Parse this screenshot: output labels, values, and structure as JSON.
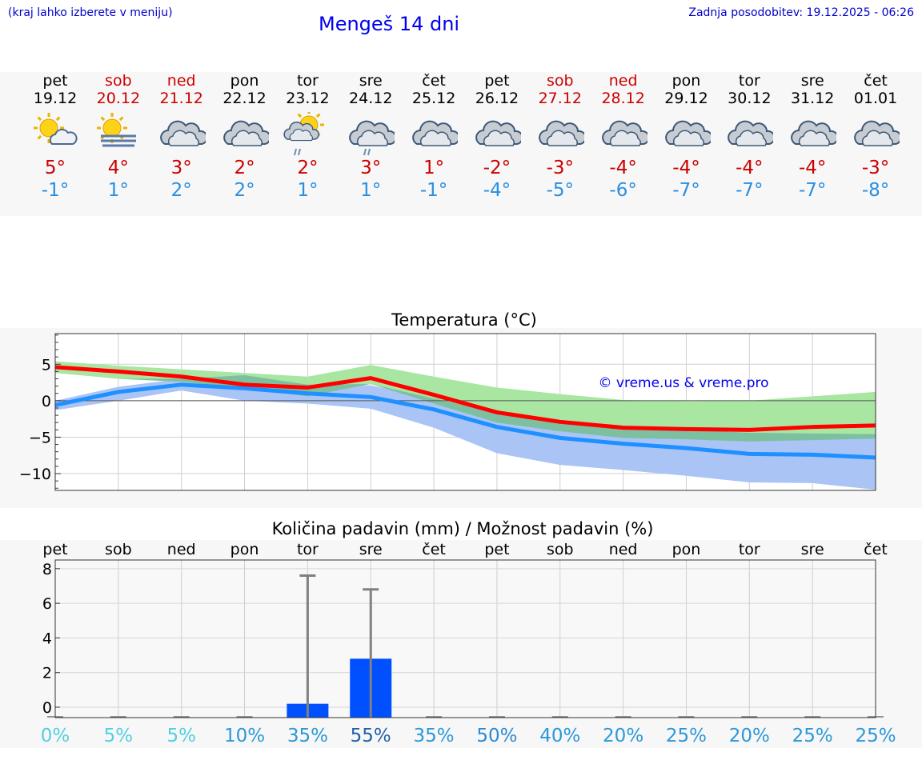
{
  "header": {
    "note": "(kraj lahko izberete v meniju)",
    "title": "Mengeš 14 dni",
    "updated": "Zadnja posodobitev: 19.12.2025 - 06:26"
  },
  "days": [
    {
      "name": "pet",
      "date": "19.12",
      "weekend": false,
      "icon": "sun-cloud",
      "tmax": "5°",
      "tmin": "-1°"
    },
    {
      "name": "sob",
      "date": "20.12",
      "weekend": true,
      "icon": "sun-fog",
      "tmax": "4°",
      "tmin": "1°"
    },
    {
      "name": "ned",
      "date": "21.12",
      "weekend": true,
      "icon": "cloudy",
      "tmax": "3°",
      "tmin": "2°"
    },
    {
      "name": "pon",
      "date": "22.12",
      "weekend": false,
      "icon": "cloudy",
      "tmax": "2°",
      "tmin": "2°"
    },
    {
      "name": "tor",
      "date": "23.12",
      "weekend": false,
      "icon": "sun-cloud-rain",
      "tmax": "2°",
      "tmin": "1°"
    },
    {
      "name": "sre",
      "date": "24.12",
      "weekend": false,
      "icon": "cloudy-rain",
      "tmax": "3°",
      "tmin": "1°"
    },
    {
      "name": "čet",
      "date": "25.12",
      "weekend": false,
      "icon": "cloudy",
      "tmax": "1°",
      "tmin": "-1°"
    },
    {
      "name": "pet",
      "date": "26.12",
      "weekend": false,
      "icon": "cloudy",
      "tmax": "-2°",
      "tmin": "-4°"
    },
    {
      "name": "sob",
      "date": "27.12",
      "weekend": true,
      "icon": "cloudy",
      "tmax": "-3°",
      "tmin": "-5°"
    },
    {
      "name": "ned",
      "date": "28.12",
      "weekend": true,
      "icon": "cloudy",
      "tmax": "-4°",
      "tmin": "-6°"
    },
    {
      "name": "pon",
      "date": "29.12",
      "weekend": false,
      "icon": "cloudy",
      "tmax": "-4°",
      "tmin": "-7°"
    },
    {
      "name": "tor",
      "date": "30.12",
      "weekend": false,
      "icon": "cloudy",
      "tmax": "-4°",
      "tmin": "-7°"
    },
    {
      "name": "sre",
      "date": "31.12",
      "weekend": false,
      "icon": "cloudy",
      "tmax": "-4°",
      "tmin": "-7°"
    },
    {
      "name": "čet",
      "date": "01.01",
      "weekend": false,
      "icon": "cloudy",
      "tmax": "-3°",
      "tmin": "-8°"
    }
  ],
  "colors": {
    "max_line": "#ff0000",
    "min_line": "#1e90ff",
    "max_band": "#a8e6a1",
    "min_band": "#a9c4f5",
    "overlap_band": "#7cc0a0",
    "precip_bar": "#0050ff",
    "error_bar": "#808080"
  },
  "chart_data": [
    {
      "type": "line",
      "title": "Temperatura (°C)",
      "watermark": "© vreme.us & vreme.pro",
      "x": [
        0,
        1,
        2,
        3,
        4,
        5,
        6,
        7,
        8,
        9,
        10,
        11,
        12,
        13
      ],
      "ylim": [
        -12.3,
        9.2
      ],
      "yticks": [
        5,
        0,
        -5,
        -10
      ],
      "ytick_labels": [
        "5",
        "0",
        "−5",
        "−10"
      ],
      "series": [
        {
          "name": "max",
          "values": [
            4.6,
            4.0,
            3.3,
            2.2,
            1.8,
            3.1,
            0.8,
            -1.6,
            -2.9,
            -3.7,
            -3.9,
            -4.0,
            -3.6,
            -3.4
          ]
        },
        {
          "name": "min",
          "values": [
            -0.6,
            1.2,
            2.2,
            1.7,
            1.0,
            0.5,
            -1.2,
            -3.6,
            -5.1,
            -5.9,
            -6.5,
            -7.3,
            -7.4,
            -7.8
          ]
        }
      ],
      "max_band": {
        "low": [
          3.8,
          3.0,
          2.6,
          1.7,
          0.6,
          2.3,
          -0.4,
          -3.0,
          -4.2,
          -5.1,
          -5.3,
          -5.6,
          -5.4,
          -5.2
        ],
        "high": [
          5.4,
          4.8,
          4.3,
          3.8,
          3.3,
          4.9,
          3.3,
          1.8,
          0.9,
          0.1,
          -0.1,
          0.0,
          0.6,
          1.2
        ]
      },
      "min_band": {
        "low": [
          -1.3,
          0.0,
          1.4,
          0.0,
          -0.4,
          -1.1,
          -3.7,
          -7.2,
          -8.8,
          -9.5,
          -10.3,
          -11.2,
          -11.3,
          -12.2
        ],
        "high": [
          0.0,
          1.9,
          3.0,
          3.5,
          2.2,
          2.1,
          0.3,
          -1.6,
          -2.8,
          -3.6,
          -4.0,
          -4.4,
          -4.5,
          -4.6
        ]
      }
    },
    {
      "type": "bar",
      "title": "Količina padavin (mm) / Možnost padavin (%)",
      "categories": [
        "pet",
        "sob",
        "ned",
        "pon",
        "tor",
        "sre",
        "čet",
        "pet",
        "sob",
        "ned",
        "pon",
        "tor",
        "sre",
        "čet"
      ],
      "ylim": [
        -0.6,
        8.5
      ],
      "yticks": [
        8,
        6,
        4,
        2,
        0
      ],
      "values": [
        0,
        0,
        0,
        0,
        0.2,
        2.8,
        0,
        0,
        0,
        0,
        0,
        0,
        0,
        0
      ],
      "error_high": [
        0,
        0,
        0,
        0,
        7.6,
        6.8,
        0,
        0,
        0,
        0,
        0,
        0,
        0,
        0
      ],
      "chance": [
        "0%",
        "5%",
        "5%",
        "10%",
        "35%",
        "55%",
        "35%",
        "50%",
        "40%",
        "20%",
        "25%",
        "20%",
        "25%",
        "25%"
      ],
      "chance_values": [
        0,
        5,
        5,
        10,
        35,
        55,
        35,
        50,
        40,
        20,
        25,
        20,
        25,
        25
      ]
    }
  ]
}
